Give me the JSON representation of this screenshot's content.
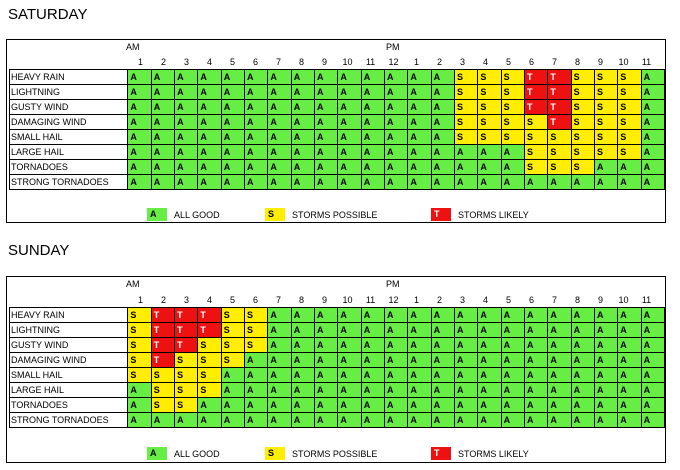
{
  "hours": [
    "1",
    "2",
    "3",
    "4",
    "5",
    "6",
    "7",
    "8",
    "9",
    "10",
    "11",
    "12",
    "1",
    "2",
    "3",
    "4",
    "5",
    "6",
    "7",
    "8",
    "9",
    "10",
    "11"
  ],
  "am_label": "AM",
  "pm_label": "PM",
  "legend": [
    {
      "code": "A",
      "label": "ALL GOOD"
    },
    {
      "code": "S",
      "label": "STORMS POSSIBLE"
    },
    {
      "code": "T",
      "label": "STORMS LIKELY"
    }
  ],
  "colors": {
    "A": "#66ee44",
    "S": "#ffee00",
    "T": "#ee1111"
  },
  "days": [
    {
      "title": "SATURDAY",
      "rows": [
        {
          "label": "HEAVY RAIN",
          "cells": [
            "A",
            "A",
            "A",
            "A",
            "A",
            "A",
            "A",
            "A",
            "A",
            "A",
            "A",
            "A",
            "A",
            "A",
            "S",
            "S",
            "S",
            "T",
            "T",
            "S",
            "S",
            "S",
            "A"
          ]
        },
        {
          "label": "LIGHTNING",
          "cells": [
            "A",
            "A",
            "A",
            "A",
            "A",
            "A",
            "A",
            "A",
            "A",
            "A",
            "A",
            "A",
            "A",
            "A",
            "S",
            "S",
            "S",
            "T",
            "T",
            "S",
            "S",
            "S",
            "A"
          ]
        },
        {
          "label": "GUSTY WIND",
          "cells": [
            "A",
            "A",
            "A",
            "A",
            "A",
            "A",
            "A",
            "A",
            "A",
            "A",
            "A",
            "A",
            "A",
            "A",
            "S",
            "S",
            "S",
            "T",
            "T",
            "S",
            "S",
            "S",
            "A"
          ]
        },
        {
          "label": "DAMAGING WIND",
          "cells": [
            "A",
            "A",
            "A",
            "A",
            "A",
            "A",
            "A",
            "A",
            "A",
            "A",
            "A",
            "A",
            "A",
            "A",
            "S",
            "S",
            "S",
            "S",
            "T",
            "S",
            "S",
            "S",
            "A"
          ]
        },
        {
          "label": "SMALL HAIL",
          "cells": [
            "A",
            "A",
            "A",
            "A",
            "A",
            "A",
            "A",
            "A",
            "A",
            "A",
            "A",
            "A",
            "A",
            "A",
            "S",
            "S",
            "S",
            "S",
            "S",
            "S",
            "S",
            "S",
            "A"
          ]
        },
        {
          "label": "LARGE HAIL",
          "cells": [
            "A",
            "A",
            "A",
            "A",
            "A",
            "A",
            "A",
            "A",
            "A",
            "A",
            "A",
            "A",
            "A",
            "A",
            "A",
            "A",
            "A",
            "S",
            "S",
            "S",
            "S",
            "S",
            "A"
          ]
        },
        {
          "label": "TORNADOES",
          "cells": [
            "A",
            "A",
            "A",
            "A",
            "A",
            "A",
            "A",
            "A",
            "A",
            "A",
            "A",
            "A",
            "A",
            "A",
            "A",
            "A",
            "A",
            "S",
            "S",
            "S",
            "A",
            "A",
            "A"
          ]
        },
        {
          "label": "STRONG TORNADOES",
          "cells": [
            "A",
            "A",
            "A",
            "A",
            "A",
            "A",
            "A",
            "A",
            "A",
            "A",
            "A",
            "A",
            "A",
            "A",
            "A",
            "A",
            "A",
            "A",
            "A",
            "A",
            "A",
            "A",
            "A"
          ]
        }
      ]
    },
    {
      "title": "SUNDAY",
      "rows": [
        {
          "label": "HEAVY RAIN",
          "cells": [
            "S",
            "T",
            "T",
            "T",
            "S",
            "S",
            "A",
            "A",
            "A",
            "A",
            "A",
            "A",
            "A",
            "A",
            "A",
            "A",
            "A",
            "A",
            "A",
            "A",
            "A",
            "A",
            "A"
          ]
        },
        {
          "label": "LIGHTNING",
          "cells": [
            "S",
            "T",
            "T",
            "T",
            "S",
            "S",
            "A",
            "A",
            "A",
            "A",
            "A",
            "A",
            "A",
            "A",
            "A",
            "A",
            "A",
            "A",
            "A",
            "A",
            "A",
            "A",
            "A"
          ]
        },
        {
          "label": "GUSTY WIND",
          "cells": [
            "S",
            "T",
            "T",
            "S",
            "S",
            "S",
            "A",
            "A",
            "A",
            "A",
            "A",
            "A",
            "A",
            "A",
            "A",
            "A",
            "A",
            "A",
            "A",
            "A",
            "A",
            "A",
            "A"
          ]
        },
        {
          "label": "DAMAGING WIND",
          "cells": [
            "S",
            "T",
            "S",
            "S",
            "S",
            "A",
            "A",
            "A",
            "A",
            "A",
            "A",
            "A",
            "A",
            "A",
            "A",
            "A",
            "A",
            "A",
            "A",
            "A",
            "A",
            "A",
            "A"
          ]
        },
        {
          "label": "SMALL HAIL",
          "cells": [
            "S",
            "S",
            "S",
            "S",
            "A",
            "A",
            "A",
            "A",
            "A",
            "A",
            "A",
            "A",
            "A",
            "A",
            "A",
            "A",
            "A",
            "A",
            "A",
            "A",
            "A",
            "A",
            "A"
          ]
        },
        {
          "label": "LARGE HAIL",
          "cells": [
            "A",
            "S",
            "S",
            "S",
            "A",
            "A",
            "A",
            "A",
            "A",
            "A",
            "A",
            "A",
            "A",
            "A",
            "A",
            "A",
            "A",
            "A",
            "A",
            "A",
            "A",
            "A",
            "A"
          ]
        },
        {
          "label": "TORNADOES",
          "cells": [
            "A",
            "S",
            "S",
            "A",
            "A",
            "A",
            "A",
            "A",
            "A",
            "A",
            "A",
            "A",
            "A",
            "A",
            "A",
            "A",
            "A",
            "A",
            "A",
            "A",
            "A",
            "A",
            "A"
          ]
        },
        {
          "label": "STRONG TORNADOES",
          "cells": [
            "A",
            "A",
            "A",
            "A",
            "A",
            "A",
            "A",
            "A",
            "A",
            "A",
            "A",
            "A",
            "A",
            "A",
            "A",
            "A",
            "A",
            "A",
            "A",
            "A",
            "A",
            "A",
            "A"
          ]
        }
      ]
    }
  ]
}
